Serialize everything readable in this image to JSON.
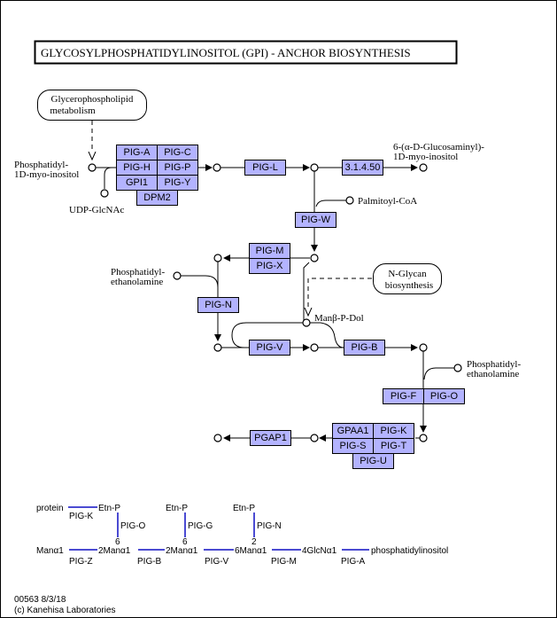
{
  "title": "GLYCOSYLPHOSPHATIDYLINOSITOL (GPI) - ANCHOR  BIOSYNTHESIS",
  "maps": {
    "glycerophospholipid": [
      "Glycerophospholipid",
      "metabolism"
    ],
    "nglycan": [
      "N-Glycan",
      "biosynthesis"
    ]
  },
  "compounds": {
    "pi": [
      "Phosphatidyl-",
      "1D-myo-inositol"
    ],
    "udp": "UDP-GlcNAc",
    "glucosaminyl": [
      "6-(α-D-Glucosaminyl)-",
      "1D-myo-inositol"
    ],
    "palmitoyl": "Palmitoyl-CoA",
    "pe1": [
      "Phosphatidyl-",
      "ethanolamine"
    ],
    "manpdol": "Manβ-P-Dol",
    "pe2": [
      "Phosphatidyl-",
      "ethanolamine"
    ]
  },
  "genes": {
    "piga": "PIG-A",
    "pigc": "PIG-C",
    "pigh": "PIG-H",
    "pigp": "PIG-P",
    "gpi1": "GPI1",
    "pigy": "PIG-Y",
    "dpm2": "DPM2",
    "pigl": "PIG-L",
    "ec3145": "3.1.4.50",
    "pigw": "PIG-W",
    "pigm": "PIG-M",
    "pigx": "PIG-X",
    "pign": "PIG-N",
    "pigv": "PIG-V",
    "pigb": "PIG-B",
    "pigf": "PIG-F",
    "pigo": "PIG-O",
    "gpaa1": "GPAA1",
    "pigk": "PIG-K",
    "pigs": "PIG-S",
    "pigt": "PIG-T",
    "pigu": "PIG-U",
    "pgap1": "PGAP1"
  },
  "structure": {
    "protein": "protein",
    "etnp1": "Etn-P",
    "etnp2": "Etn-P",
    "etnp3": "Etn-P",
    "pigk": "PIG-K",
    "pigo": "PIG-O",
    "pigg": "PIG-G",
    "pign": "PIG-N",
    "num6a": "6",
    "num6b": "6",
    "num2": "2",
    "mana1": "Manα1",
    "n2mana1": "2Manα1",
    "n2mana1b": "2Manα1",
    "n6mana1": "6Manα1",
    "n4glcna1": "4GlcNα1",
    "pi": "phosphatidylinositol",
    "pigz": "PIG-Z",
    "pigb": "PIG-B",
    "pigv": "PIG-V",
    "pigm": "PIG-M",
    "piga": "PIG-A"
  },
  "footer": {
    "id": "00563 8/3/18",
    "copyright": "(c) Kanehisa Laboratories"
  },
  "colors": {
    "gene_fill": "#b3b3ff",
    "structure_line": "#4b4bd2"
  }
}
